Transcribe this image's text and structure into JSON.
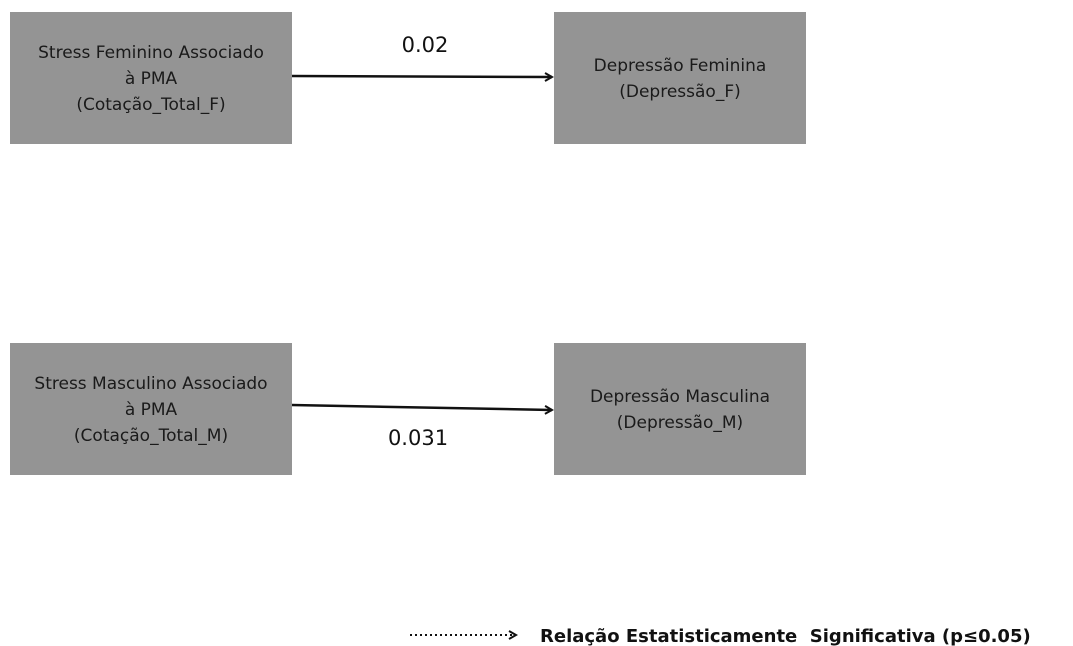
{
  "nodes": [
    {
      "lines": [
        "Stress Feminino Associado",
        "à PMA",
        "(Cotação_Total_F)"
      ]
    },
    {
      "lines": [
        "Depressão Feminina",
        "(Depressão_F)"
      ]
    },
    {
      "lines": [
        "Stress Masculino Associado",
        "à PMA",
        "(Cotação_Total_M)"
      ]
    },
    {
      "lines": [
        "Depressão Masculina",
        "(Depressão_M)"
      ]
    }
  ],
  "edges": [
    {
      "from": 0,
      "to": 1,
      "label": "0.02"
    },
    {
      "from": 2,
      "to": 3,
      "label": "0.031"
    }
  ],
  "legend": {
    "label": "Relação Estatisticamente  Significativa (p≤0.05)"
  }
}
